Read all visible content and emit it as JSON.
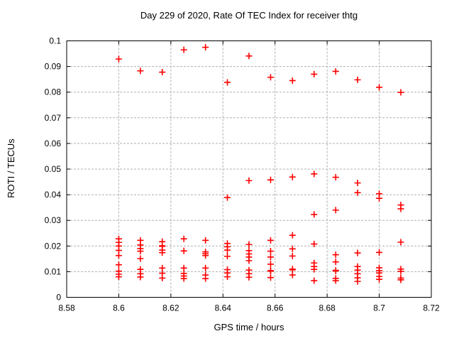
{
  "chart_data": {
    "type": "scatter",
    "title": "Day 229 of 2020, Rate Of TEC Index for receiver thtg",
    "xlabel": "GPS time / hours",
    "ylabel": "ROTI / TECUs",
    "xlim": [
      8.58,
      8.72
    ],
    "ylim": [
      0,
      0.1
    ],
    "xticks": [
      8.58,
      8.6,
      8.62,
      8.64,
      8.66,
      8.68,
      8.7,
      8.72
    ],
    "xtick_labels": [
      "8.58",
      "8.6",
      "8.62",
      "8.64",
      "8.66",
      "8.68",
      "8.7",
      "8.72"
    ],
    "yticks": [
      0,
      0.01,
      0.02,
      0.03,
      0.04,
      0.05,
      0.06,
      0.07,
      0.08,
      0.09,
      0.1
    ],
    "ytick_labels": [
      "0",
      "0.01",
      "0.02",
      "0.03",
      "0.04",
      "0.05",
      "0.06",
      "0.07",
      "0.08",
      "0.09",
      "0.1"
    ],
    "grid": true,
    "legend_position": "none",
    "grid_color": "#b0b0b0",
    "marker": {
      "shape": "plus",
      "color": "#ff0000",
      "size": 9
    },
    "series": [
      {
        "name": "ROTI",
        "points": [
          [
            8.6,
            0.0929
          ],
          [
            8.6,
            0.0228
          ],
          [
            8.6,
            0.0214
          ],
          [
            8.6,
            0.02
          ],
          [
            8.6,
            0.0183
          ],
          [
            8.6,
            0.0163
          ],
          [
            8.6,
            0.0127
          ],
          [
            8.6,
            0.0102
          ],
          [
            8.6,
            0.009
          ],
          [
            8.6,
            0.008
          ],
          [
            8.6083,
            0.0883
          ],
          [
            8.6083,
            0.0222
          ],
          [
            8.6083,
            0.0204
          ],
          [
            8.6083,
            0.019
          ],
          [
            8.6083,
            0.018
          ],
          [
            8.6083,
            0.0151
          ],
          [
            8.6083,
            0.0109
          ],
          [
            8.6083,
            0.0092
          ],
          [
            8.6083,
            0.0079
          ],
          [
            8.6167,
            0.0878
          ],
          [
            8.6167,
            0.0217
          ],
          [
            8.6167,
            0.0201
          ],
          [
            8.6167,
            0.0199
          ],
          [
            8.6167,
            0.0184
          ],
          [
            8.6167,
            0.0174
          ],
          [
            8.6167,
            0.0114
          ],
          [
            8.6167,
            0.0094
          ],
          [
            8.6167,
            0.0075
          ],
          [
            8.625,
            0.0965
          ],
          [
            8.625,
            0.0228
          ],
          [
            8.625,
            0.0181
          ],
          [
            8.625,
            0.0114
          ],
          [
            8.625,
            0.0093
          ],
          [
            8.625,
            0.0083
          ],
          [
            8.625,
            0.0073
          ],
          [
            8.6333,
            0.0975
          ],
          [
            8.6333,
            0.0222
          ],
          [
            8.6333,
            0.0177
          ],
          [
            8.6333,
            0.017
          ],
          [
            8.6333,
            0.0163
          ],
          [
            8.6333,
            0.0114
          ],
          [
            8.6333,
            0.0087
          ],
          [
            8.6333,
            0.0073
          ],
          [
            8.6417,
            0.0838
          ],
          [
            8.6417,
            0.0389
          ],
          [
            8.6417,
            0.021
          ],
          [
            8.6417,
            0.0197
          ],
          [
            8.6417,
            0.0184
          ],
          [
            8.6417,
            0.016
          ],
          [
            8.6417,
            0.0108
          ],
          [
            8.6417,
            0.0095
          ],
          [
            8.6417,
            0.008
          ],
          [
            8.65,
            0.0941
          ],
          [
            8.65,
            0.0455
          ],
          [
            8.65,
            0.0206
          ],
          [
            8.65,
            0.0182
          ],
          [
            8.65,
            0.0169
          ],
          [
            8.65,
            0.0157
          ],
          [
            8.65,
            0.0143
          ],
          [
            8.65,
            0.0106
          ],
          [
            8.65,
            0.0092
          ],
          [
            8.65,
            0.0078
          ],
          [
            8.6583,
            0.0858
          ],
          [
            8.6583,
            0.0458
          ],
          [
            8.6583,
            0.0222
          ],
          [
            8.6583,
            0.018
          ],
          [
            8.6583,
            0.0157
          ],
          [
            8.6583,
            0.0129
          ],
          [
            8.6583,
            0.0104
          ],
          [
            8.6583,
            0.0102
          ],
          [
            8.6583,
            0.0077
          ],
          [
            8.6667,
            0.0845
          ],
          [
            8.6667,
            0.0469
          ],
          [
            8.6667,
            0.0242
          ],
          [
            8.6667,
            0.0189
          ],
          [
            8.6667,
            0.0161
          ],
          [
            8.6667,
            0.011
          ],
          [
            8.6667,
            0.0107
          ],
          [
            8.6667,
            0.0087
          ],
          [
            8.675,
            0.087
          ],
          [
            8.675,
            0.0481
          ],
          [
            8.675,
            0.0323
          ],
          [
            8.675,
            0.0208
          ],
          [
            8.675,
            0.0134
          ],
          [
            8.675,
            0.012
          ],
          [
            8.675,
            0.0109
          ],
          [
            8.675,
            0.0065
          ],
          [
            8.6833,
            0.0881
          ],
          [
            8.6833,
            0.0468
          ],
          [
            8.6833,
            0.034
          ],
          [
            8.6833,
            0.0166
          ],
          [
            8.6833,
            0.0138
          ],
          [
            8.6833,
            0.0105
          ],
          [
            8.6833,
            0.0103
          ],
          [
            8.6833,
            0.0074
          ],
          [
            8.6833,
            0.0065
          ],
          [
            8.6917,
            0.0848
          ],
          [
            8.6917,
            0.0446
          ],
          [
            8.6917,
            0.0408
          ],
          [
            8.6917,
            0.0173
          ],
          [
            8.6917,
            0.012
          ],
          [
            8.6917,
            0.0106
          ],
          [
            8.6917,
            0.0092
          ],
          [
            8.6917,
            0.0076
          ],
          [
            8.6917,
            0.0062
          ],
          [
            8.7,
            0.0819
          ],
          [
            8.7,
            0.0404
          ],
          [
            8.7,
            0.0386
          ],
          [
            8.7,
            0.0175
          ],
          [
            8.7,
            0.0115
          ],
          [
            8.7,
            0.0104
          ],
          [
            8.7,
            0.0095
          ],
          [
            8.7,
            0.0081
          ],
          [
            8.7,
            0.007
          ],
          [
            8.7083,
            0.0799
          ],
          [
            8.7083,
            0.036
          ],
          [
            8.7083,
            0.0345
          ],
          [
            8.7083,
            0.0215
          ],
          [
            8.7083,
            0.011
          ],
          [
            8.7083,
            0.0101
          ],
          [
            8.7083,
            0.0075
          ],
          [
            8.7083,
            0.0068
          ]
        ]
      }
    ]
  }
}
